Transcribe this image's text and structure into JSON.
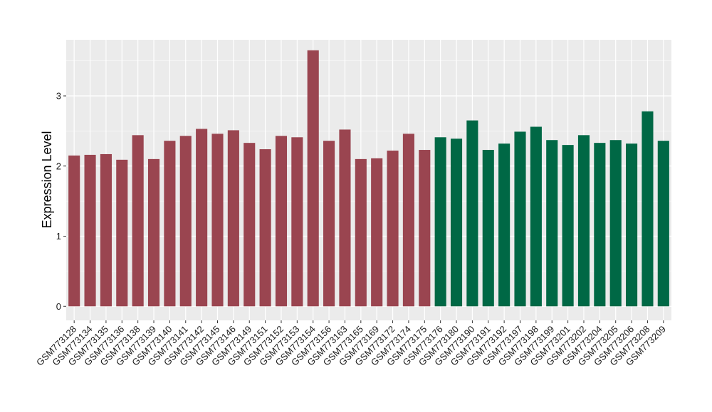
{
  "chart_data": {
    "type": "bar",
    "title": "",
    "xlabel": "",
    "ylabel": "Expression Level",
    "ylim": [
      -0.2,
      3.8
    ],
    "y_ticks": [
      0,
      1,
      2,
      3
    ],
    "grid": true,
    "legend": "none",
    "panel_background": "#ebebeb",
    "grid_color": "#ffffff",
    "group_colors": [
      "#9a4550",
      "#006845"
    ],
    "categories": [
      "GSM773128",
      "GSM773134",
      "GSM773135",
      "GSM773136",
      "GSM773138",
      "GSM773139",
      "GSM773140",
      "GSM773141",
      "GSM773142",
      "GSM773145",
      "GSM773146",
      "GSM773149",
      "GSM773151",
      "GSM773152",
      "GSM773153",
      "GSM773154",
      "GSM773156",
      "GSM773163",
      "GSM773165",
      "GSM773169",
      "GSM773172",
      "GSM773174",
      "GSM773175",
      "GSM773176",
      "GSM773180",
      "GSM773190",
      "GSM773191",
      "GSM773192",
      "GSM773197",
      "GSM773198",
      "GSM773199",
      "GSM773201",
      "GSM773202",
      "GSM773204",
      "GSM773205",
      "GSM773206",
      "GSM773208",
      "GSM773209"
    ],
    "values": [
      2.15,
      2.16,
      2.17,
      2.09,
      2.44,
      2.1,
      2.36,
      2.43,
      2.53,
      2.46,
      2.51,
      2.33,
      2.24,
      2.43,
      2.41,
      3.65,
      2.36,
      2.52,
      2.1,
      2.11,
      2.22,
      2.46,
      2.23,
      2.41,
      2.39,
      2.65,
      2.23,
      2.32,
      2.49,
      2.56,
      2.37,
      2.3,
      2.44,
      2.33,
      2.37,
      2.32,
      2.78,
      2.36
    ],
    "groups": [
      0,
      0,
      0,
      0,
      0,
      0,
      0,
      0,
      0,
      0,
      0,
      0,
      0,
      0,
      0,
      0,
      0,
      0,
      0,
      0,
      0,
      0,
      0,
      1,
      1,
      1,
      1,
      1,
      1,
      1,
      1,
      1,
      1,
      1,
      1,
      1,
      1,
      1
    ]
  }
}
